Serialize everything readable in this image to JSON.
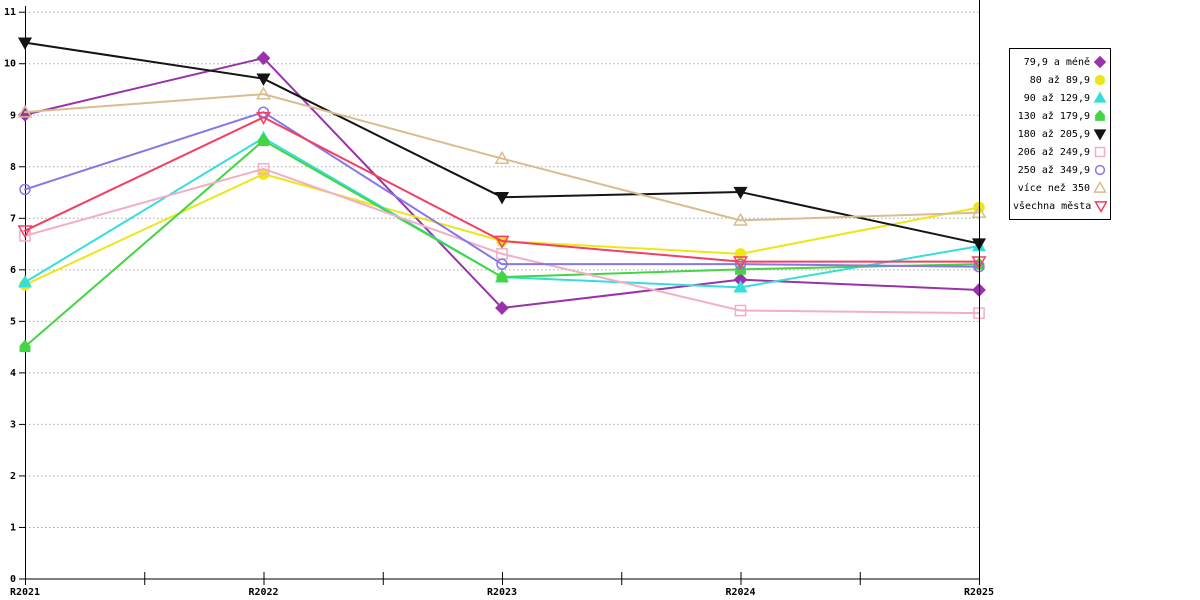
{
  "chart_data": {
    "type": "line",
    "title": "",
    "xlabel": "",
    "ylabel": "",
    "categories": [
      "R2021",
      "R2022",
      "R2023",
      "R2024",
      "R2025"
    ],
    "series": [
      {
        "name": "79,9 a méně",
        "color": "#9933AA",
        "marker": "diamond",
        "filled": true,
        "values": [
          9.0,
          10.1,
          5.25,
          5.8,
          5.6
        ]
      },
      {
        "name": "80 až 89,9",
        "color": "#EDE619",
        "marker": "circle",
        "filled": true,
        "values": [
          5.7,
          7.85,
          6.55,
          6.3,
          7.2
        ]
      },
      {
        "name": "90 až 129,9",
        "color": "#35DEDB",
        "marker": "triangle-up",
        "filled": true,
        "values": [
          5.75,
          8.55,
          5.85,
          5.65,
          6.45
        ]
      },
      {
        "name": "130 až 179,9",
        "color": "#44D544",
        "marker": "pentagon",
        "filled": true,
        "values": [
          4.5,
          8.5,
          5.85,
          6.0,
          6.1
        ]
      },
      {
        "name": "180 až 205,9",
        "color": "#141414",
        "marker": "triangle-down",
        "filled": true,
        "values": [
          10.4,
          9.7,
          7.4,
          7.5,
          6.5
        ]
      },
      {
        "name": "206 až 249,9",
        "color": "#F2AEC5",
        "marker": "square",
        "filled": false,
        "values": [
          6.65,
          7.95,
          6.3,
          5.2,
          5.15
        ]
      },
      {
        "name": "250 až 349,9",
        "color": "#8678E6",
        "marker": "circle",
        "filled": false,
        "values": [
          7.55,
          9.05,
          6.1,
          6.1,
          6.05
        ]
      },
      {
        "name": "více než 350",
        "color": "#D9BC8F",
        "marker": "triangle-up",
        "filled": false,
        "values": [
          9.05,
          9.4,
          8.15,
          6.95,
          7.1
        ]
      },
      {
        "name": "všechna města",
        "color": "#F23F63",
        "marker": "triangle-down",
        "filled": false,
        "values": [
          6.75,
          8.95,
          6.55,
          6.15,
          6.15
        ]
      }
    ],
    "ylim": [
      0,
      11
    ],
    "ytick_step": 1,
    "y_tick_labels": [
      "0",
      "1",
      "2",
      "3",
      "4",
      "5",
      "6",
      "7",
      "8",
      "9",
      "10",
      "11"
    ],
    "x_minor_ticks_between_labels": 1,
    "grid": "horizontal-dotted",
    "legend_position": "right"
  },
  "colors": {
    "background": "#ffffff",
    "axis": "#000000",
    "grid": "#aaaaaa",
    "legend_border": "#000000"
  }
}
